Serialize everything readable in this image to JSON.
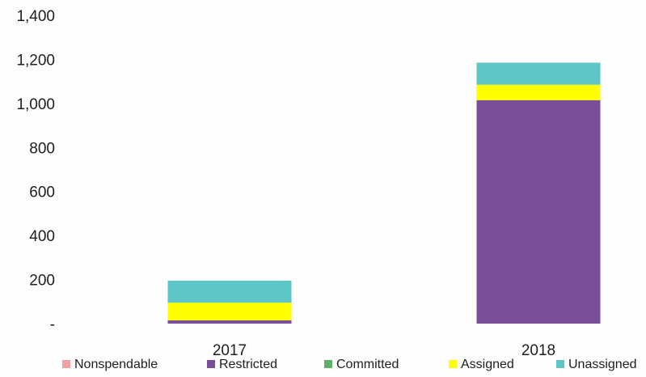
{
  "chart_data": {
    "type": "bar",
    "stacked": true,
    "categories": [
      "2017",
      "2018"
    ],
    "series": [
      {
        "name": "Nonspendable",
        "color": "#f4a0a0",
        "values": [
          0,
          0
        ]
      },
      {
        "name": "Restricted",
        "color": "#7a4f9a",
        "values": [
          15,
          1015
        ]
      },
      {
        "name": "Committed",
        "color": "#5eb06a",
        "values": [
          0,
          0
        ]
      },
      {
        "name": "Assigned",
        "color": "#ffff00",
        "values": [
          80,
          70
        ]
      },
      {
        "name": "Unassigned",
        "color": "#5ec6c6",
        "values": [
          100,
          100
        ]
      }
    ],
    "ylim": [
      0,
      1400
    ],
    "y_ticks": [
      {
        "value": 0,
        "label": "-"
      },
      {
        "value": 200,
        "label": "200"
      },
      {
        "value": 400,
        "label": "400"
      },
      {
        "value": 600,
        "label": "600"
      },
      {
        "value": 800,
        "label": "800"
      },
      {
        "value": 1000,
        "label": "1,000"
      },
      {
        "value": 1200,
        "label": "1,200"
      },
      {
        "value": 1400,
        "label": "1,400"
      }
    ],
    "grid": false,
    "legend_position": "bottom",
    "title": "",
    "xlabel": "",
    "ylabel": ""
  }
}
